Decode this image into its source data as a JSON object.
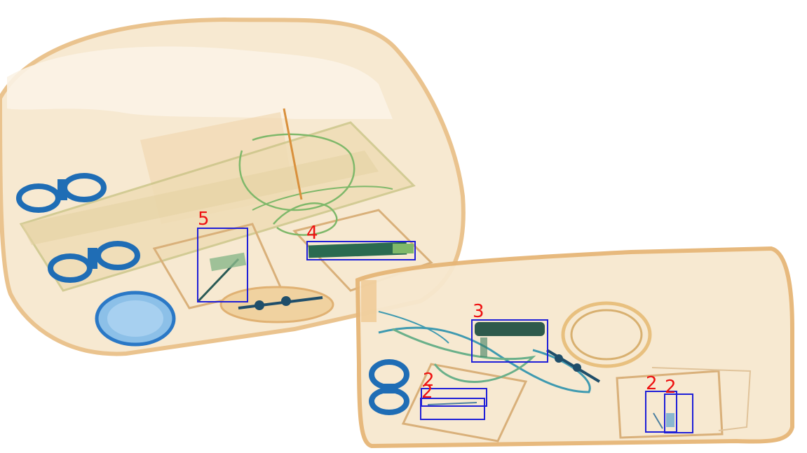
{
  "colors": {
    "box": "#1f1fd8",
    "label": "#ee1111",
    "bag_fill": "#f5e3c4",
    "bag_edge": "#e6b677",
    "metal_blue": "#1f6db5",
    "organic_green": "#7fb86a"
  },
  "detections": [
    {
      "id": "det-5",
      "label": "5"
    },
    {
      "id": "det-4",
      "label": "4"
    },
    {
      "id": "det-3",
      "label": "3"
    },
    {
      "id": "det-2a",
      "label": "2"
    },
    {
      "id": "det-2b",
      "label": "2"
    },
    {
      "id": "det-2c",
      "label": "2"
    },
    {
      "id": "det-2d",
      "label": "2"
    }
  ]
}
